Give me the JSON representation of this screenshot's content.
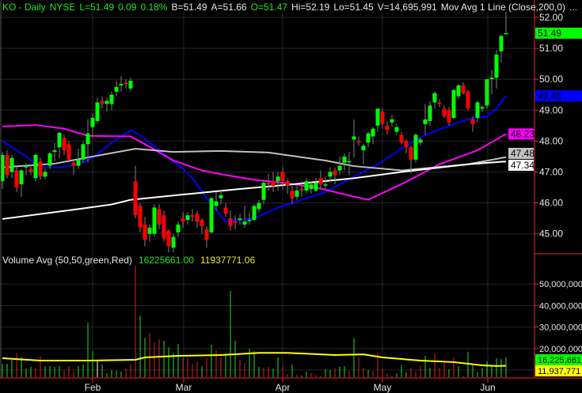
{
  "header": {
    "symbol": "KO - Daily",
    "exchange": "NYSE",
    "last": "L=51.49",
    "change": "0.09",
    "change_pct": "0.18%",
    "bid": "B=51.49",
    "ask": "A=51.66",
    "open": "O=51.47",
    "high": "Hi=52.19",
    "low": "Lo=51.45",
    "volume": "V=14,695,991",
    "study": "Mov Avg 1 Line (Close,200,0)",
    "more": "..."
  },
  "volume_header": {
    "label": "Volume Avg (50,50,green,Red)",
    "value_green": "16225661.00",
    "value_yellow": "11937771.06"
  },
  "chart_data": [
    {
      "type": "candlestick",
      "ylim": [
        44.3,
        52.5
      ],
      "y_ticks": [
        "45.00",
        "46.00",
        "47.00",
        "48.00",
        "49.00",
        "50.00",
        "51.00",
        "52.00"
      ],
      "x_ticks": [
        "Feb",
        "Mar",
        "Apr",
        "May",
        "Jun"
      ],
      "grid": true,
      "colors": {
        "up": "#00ff00",
        "down": "#ff0000",
        "wick": "#808080"
      },
      "candles_ohlc": [
        [
          46.7,
          47.65,
          46.45,
          47.55
        ],
        [
          47.55,
          47.7,
          46.8,
          46.9
        ],
        [
          47.0,
          47.55,
          46.8,
          47.45
        ],
        [
          47.05,
          47.15,
          46.35,
          46.5
        ],
        [
          46.6,
          47.1,
          46.2,
          47.05
        ],
        [
          47.15,
          47.3,
          46.9,
          47.2
        ],
        [
          47.1,
          47.25,
          46.9,
          47.0
        ],
        [
          46.8,
          47.6,
          46.7,
          47.55
        ],
        [
          47.35,
          47.45,
          46.75,
          46.85
        ],
        [
          46.85,
          47.1,
          46.75,
          47.0
        ],
        [
          47.2,
          47.65,
          47.1,
          47.6
        ],
        [
          47.65,
          47.95,
          47.35,
          47.7
        ],
        [
          47.8,
          48.3,
          47.45,
          48.27
        ],
        [
          48.1,
          48.2,
          47.55,
          47.7
        ],
        [
          47.9,
          48.0,
          47.3,
          47.4
        ],
        [
          47.3,
          47.4,
          46.9,
          47.2
        ],
        [
          47.2,
          47.75,
          47.1,
          47.4
        ],
        [
          47.4,
          48.0,
          47.3,
          47.9
        ],
        [
          47.9,
          48.7,
          47.3,
          48.25
        ],
        [
          48.45,
          48.9,
          48.1,
          48.75
        ],
        [
          48.65,
          49.4,
          48.55,
          49.25
        ],
        [
          49.3,
          49.45,
          49.05,
          49.2
        ],
        [
          49.2,
          49.4,
          48.95,
          49.3
        ],
        [
          49.2,
          49.6,
          49.0,
          49.5
        ],
        [
          49.6,
          49.95,
          49.45,
          49.75
        ],
        [
          49.8,
          50.1,
          49.6,
          49.85
        ],
        [
          49.9,
          50.0,
          49.7,
          49.85
        ],
        [
          49.7,
          50.05,
          49.6,
          49.95
        ],
        [
          46.7,
          47.2,
          45.5,
          45.6
        ],
        [
          45.9,
          46.0,
          45.05,
          45.2
        ],
        [
          45.3,
          45.55,
          44.6,
          44.8
        ],
        [
          45.0,
          45.3,
          44.75,
          45.2
        ],
        [
          45.0,
          45.95,
          44.9,
          45.85
        ],
        [
          45.8,
          45.95,
          45.15,
          45.3
        ],
        [
          45.6,
          45.75,
          44.75,
          44.85
        ],
        [
          45.1,
          45.15,
          44.4,
          44.6
        ],
        [
          44.55,
          45.0,
          44.4,
          44.9
        ],
        [
          45.05,
          45.4,
          44.9,
          45.3
        ],
        [
          45.5,
          45.7,
          45.2,
          45.4
        ],
        [
          45.45,
          45.7,
          45.3,
          45.6
        ],
        [
          45.6,
          45.8,
          45.4,
          45.55
        ],
        [
          45.65,
          45.75,
          45.2,
          45.4
        ],
        [
          45.45,
          45.5,
          45.0,
          45.25
        ],
        [
          45.15,
          45.25,
          44.55,
          44.8
        ],
        [
          45.05,
          46.2,
          45.0,
          46.15
        ],
        [
          45.9,
          46.35,
          45.75,
          46.05
        ],
        [
          46.15,
          46.4,
          45.95,
          46.25
        ],
        [
          45.85,
          46.0,
          45.55,
          45.65
        ],
        [
          45.5,
          45.75,
          45.1,
          45.25
        ],
        [
          45.4,
          45.6,
          45.15,
          45.35
        ],
        [
          45.45,
          45.65,
          45.3,
          45.5
        ],
        [
          45.3,
          45.9,
          45.2,
          45.4
        ],
        [
          45.45,
          45.7,
          45.3,
          45.45
        ],
        [
          45.45,
          45.95,
          45.4,
          45.9
        ],
        [
          45.8,
          46.1,
          45.7,
          46.0
        ],
        [
          46.1,
          46.75,
          45.95,
          46.65
        ],
        [
          46.65,
          46.95,
          46.4,
          46.6
        ],
        [
          46.7,
          47.0,
          46.35,
          46.55
        ],
        [
          46.7,
          47.0,
          46.4,
          46.85
        ],
        [
          47.0,
          47.15,
          46.45,
          46.7
        ],
        [
          46.7,
          46.8,
          46.3,
          46.55
        ],
        [
          46.4,
          46.55,
          45.95,
          46.15
        ],
        [
          46.2,
          46.55,
          46.1,
          46.4
        ],
        [
          46.45,
          46.7,
          46.2,
          46.4
        ],
        [
          46.4,
          46.8,
          46.3,
          46.7
        ],
        [
          46.45,
          46.7,
          46.3,
          46.6
        ],
        [
          46.4,
          46.8,
          46.35,
          46.65
        ],
        [
          46.8,
          47.05,
          46.45,
          46.6
        ],
        [
          46.6,
          46.85,
          46.45,
          46.6
        ],
        [
          46.85,
          47.15,
          46.7,
          47.0
        ],
        [
          47.05,
          47.15,
          46.6,
          46.9
        ],
        [
          47.05,
          47.5,
          46.9,
          47.2
        ],
        [
          47.3,
          47.6,
          47.05,
          47.5
        ],
        [
          47.35,
          47.65,
          46.9,
          47.35
        ],
        [
          48.05,
          48.7,
          47.45,
          48.15
        ],
        [
          48.0,
          48.15,
          47.85,
          47.95
        ],
        [
          47.7,
          47.9,
          47.25,
          47.85
        ],
        [
          47.95,
          48.3,
          47.8,
          48.25
        ],
        [
          48.15,
          48.45,
          47.9,
          48.4
        ],
        [
          48.5,
          49.05,
          48.3,
          49.05
        ],
        [
          48.95,
          49.05,
          48.4,
          48.55
        ],
        [
          48.5,
          48.65,
          48.2,
          48.35
        ],
        [
          48.6,
          48.85,
          48.45,
          48.7
        ],
        [
          48.3,
          48.55,
          48.2,
          48.45
        ],
        [
          48.2,
          48.3,
          47.9,
          47.95
        ],
        [
          48.0,
          48.05,
          47.6,
          47.8
        ],
        [
          47.8,
          47.85,
          46.95,
          47.4
        ],
        [
          47.4,
          48.25,
          47.3,
          48.2
        ],
        [
          47.95,
          48.1,
          47.85,
          48.05
        ],
        [
          48.55,
          49.2,
          48.2,
          48.7
        ],
        [
          48.65,
          49.3,
          48.5,
          49.15
        ],
        [
          49.25,
          49.6,
          49.05,
          49.55
        ],
        [
          49.25,
          49.35,
          49.1,
          49.2
        ],
        [
          49.05,
          49.15,
          48.75,
          48.8
        ],
        [
          49.0,
          49.1,
          48.5,
          48.6
        ],
        [
          48.75,
          49.7,
          48.7,
          49.65
        ],
        [
          49.45,
          49.85,
          49.35,
          49.8
        ],
        [
          49.8,
          49.9,
          49.5,
          49.55
        ],
        [
          49.6,
          49.65,
          49.0,
          49.05
        ],
        [
          48.7,
          48.8,
          48.3,
          48.55
        ],
        [
          48.75,
          49.3,
          48.6,
          49.25
        ],
        [
          49.05,
          49.15,
          48.95,
          49.1
        ],
        [
          49.15,
          50.0,
          49.05,
          50.0
        ],
        [
          50.0,
          50.3,
          49.5,
          50.05
        ],
        [
          50.05,
          50.95,
          49.7,
          50.8
        ],
        [
          50.9,
          51.45,
          50.55,
          51.4
        ],
        [
          51.47,
          52.19,
          51.45,
          51.49
        ]
      ],
      "moving_averages": [
        {
          "color": "#0000ff",
          "last": "49.46",
          "points": [
            [
              0,
              48.0
            ],
            [
              5,
              47.5
            ],
            [
              8,
              47.15
            ],
            [
              12,
              47.15
            ],
            [
              16,
              47.25
            ],
            [
              19,
              47.45
            ],
            [
              23,
              47.95
            ],
            [
              27,
              48.35
            ],
            [
              29,
              48.2
            ],
            [
              33,
              47.7
            ],
            [
              38,
              47.1
            ],
            [
              40,
              46.8
            ],
            [
              43,
              46.15
            ],
            [
              47,
              45.4
            ],
            [
              53,
              45.5
            ],
            [
              58,
              45.85
            ],
            [
              63,
              46.1
            ],
            [
              68,
              46.35
            ],
            [
              74,
              46.85
            ],
            [
              79,
              47.25
            ],
            [
              84,
              47.75
            ],
            [
              89,
              48.2
            ],
            [
              95,
              48.55
            ],
            [
              98,
              48.7
            ],
            [
              102,
              48.8
            ],
            [
              104,
              49.05
            ],
            [
              106,
              49.46
            ]
          ]
        },
        {
          "color": "#ff00ff",
          "last": "48.23",
          "points": [
            [
              0,
              48.47
            ],
            [
              7,
              48.52
            ],
            [
              13,
              48.4
            ],
            [
              18,
              48.17
            ],
            [
              27,
              48.15
            ],
            [
              30,
              47.9
            ],
            [
              36,
              47.37
            ],
            [
              42,
              47.05
            ],
            [
              47,
              46.9
            ],
            [
              53,
              46.75
            ],
            [
              60,
              46.63
            ],
            [
              66,
              46.5
            ],
            [
              74,
              46.2
            ],
            [
              77,
              46.1
            ],
            [
              85,
              46.68
            ],
            [
              92,
              47.25
            ],
            [
              100,
              47.7
            ],
            [
              106,
              48.23
            ]
          ]
        },
        {
          "color": "#c0c0c0",
          "last": "47.48",
          "points": [
            [
              0,
              47.15
            ],
            [
              11,
              47.27
            ],
            [
              19,
              47.5
            ],
            [
              28,
              47.75
            ],
            [
              36,
              47.65
            ],
            [
              46,
              47.68
            ],
            [
              56,
              47.63
            ],
            [
              61,
              47.52
            ],
            [
              68,
              47.37
            ],
            [
              74,
              47.19
            ],
            [
              84,
              47.05
            ],
            [
              98,
              47.25
            ],
            [
              106,
              47.48
            ]
          ]
        },
        {
          "color": "#ffffff",
          "last": "47.34",
          "points": [
            [
              0,
              45.48
            ],
            [
              16,
              45.8
            ],
            [
              23,
              45.95
            ],
            [
              27,
              46.1
            ],
            [
              38,
              46.27
            ],
            [
              50,
              46.45
            ],
            [
              61,
              46.6
            ],
            [
              74,
              46.8
            ],
            [
              84,
              47.0
            ],
            [
              98,
              47.25
            ],
            [
              106,
              47.34
            ]
          ]
        }
      ],
      "last_price_tag": {
        "value": "51.49",
        "color": "#00ff00"
      }
    },
    {
      "type": "bar",
      "title": "Volume Avg (50,50,green,Red)",
      "y_ticks": [
        "20,000,000",
        "30,000,000",
        "40,000,000",
        "50,000,000"
      ],
      "unit": "millions",
      "volumes": [
        12.9,
        12.9,
        14.8,
        17.7,
        15.9,
        10.7,
        11.5,
        11.1,
        16.6,
        11.8,
        11.8,
        11.5,
        11.8,
        10,
        11.8,
        9.6,
        11.8,
        12.6,
        32,
        18.8,
        14.8,
        12.6,
        8.5,
        10,
        9.6,
        9.3,
        10.7,
        12.6,
        58.5,
        35.4,
        25,
        27.3,
        22.9,
        24.3,
        23.6,
        20.6,
        17.7,
        22.1,
        15.9,
        15.9,
        12.9,
        14,
        11.8,
        15.5,
        21.8,
        19.2,
        15.9,
        17.7,
        46.8,
        23.6,
        14.8,
        13.3,
        19.9,
        18.8,
        11.5,
        11.1,
        11.5,
        10.7,
        15.9,
        11.5,
        8.2,
        12.6,
        7.8,
        7.5,
        9.3,
        8.5,
        7.8,
        7.1,
        10.4,
        10,
        10.7,
        11.5,
        11.8,
        9.6,
        25,
        15.9,
        11.1,
        10,
        9.6,
        17.7,
        10.4,
        8.5,
        7.1,
        8.5,
        12.2,
        9,
        11.1,
        9.3,
        11.8,
        16.6,
        11.1,
        17.7,
        11.1,
        13.7,
        10.4,
        15.9,
        11.8,
        7.1,
        18.5,
        12.2,
        9,
        11.1,
        14,
        11.8,
        15.5,
        15.2,
        15.9
      ],
      "volume_colors": "gggrgggrrgggg rrrggggwggggg rrrggrrrggggrrrrgrgrrgggrrggg rrggrrgrggrrgggrggrgrrgrrrrggggrrrggrrrgrg ggg",
      "average": {
        "color": "#ffff00",
        "points": [
          [
            0,
            15.5
          ],
          [
            8,
            14.4
          ],
          [
            18,
            14.4
          ],
          [
            28,
            14.8
          ],
          [
            30,
            15.9
          ],
          [
            33,
            16.2
          ],
          [
            37,
            16.6
          ],
          [
            46,
            17
          ],
          [
            54,
            18
          ],
          [
            60,
            18
          ],
          [
            70,
            17
          ],
          [
            76,
            17.3
          ],
          [
            80,
            15.9
          ],
          [
            88,
            14.4
          ],
          [
            95,
            13.7
          ],
          [
            101,
            12.2
          ],
          [
            104,
            11.9
          ],
          [
            106,
            12.0
          ]
        ]
      },
      "tags": [
        {
          "value": "16,225,661",
          "color": "#00ff00"
        },
        {
          "value": "11,937,771",
          "color": "#ffff00"
        }
      ]
    }
  ]
}
